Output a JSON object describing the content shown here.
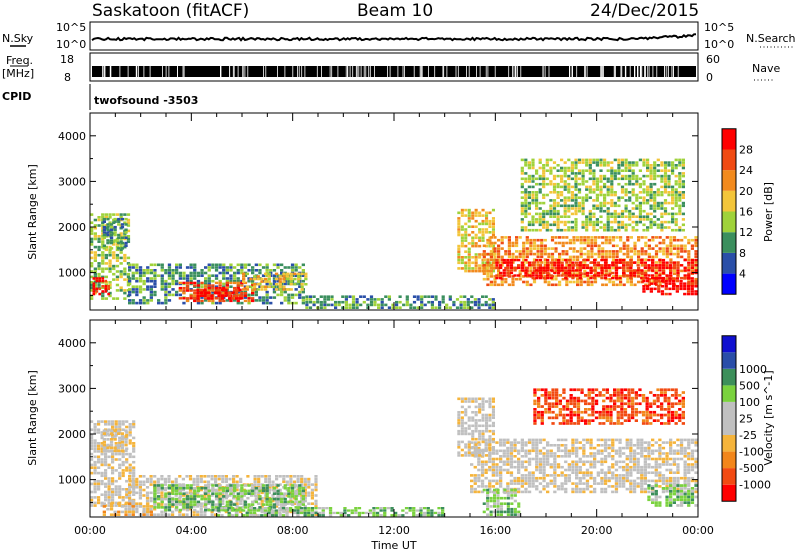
{
  "header": {
    "station": "Saskatoon (fitACF)",
    "beam": "Beam 10",
    "date": "24/Dec/2015"
  },
  "left_labels": {
    "nsky": "N.Sky",
    "freq": "Freq.",
    "mhz": "[MHz]",
    "cpid": "CPID"
  },
  "right_labels": {
    "nsearch": "N.Search",
    "nave": "Nave"
  },
  "nsky_ticks": {
    "top": "10^5",
    "bottom": "10^0"
  },
  "freq_ticks": {
    "top": "18",
    "bottom": "8"
  },
  "nave_ticks": {
    "top": "60",
    "bottom": "0"
  },
  "cpid_text": "twofsound -3503",
  "colors": {
    "power": [
      "#0000ff",
      "#2a4fa8",
      "#3b8f5e",
      "#9fd23a",
      "#f3c53a",
      "#f28a1d",
      "#f04a12",
      "#ff0000"
    ],
    "velocity": [
      "#ff0000",
      "#f24a12",
      "#f2861b",
      "#f5b43b",
      "#c0c0c0",
      "#c0c0c0",
      "#7ad23e",
      "#3c8f5a",
      "#2a4ea8",
      "#1010d0"
    ]
  },
  "chart_data": [
    {
      "type": "heatmap",
      "panel": "power",
      "ylabel": "Slant Range [km]",
      "xlim": [
        0,
        24
      ],
      "ylim": [
        180,
        4500
      ],
      "yticks": [
        1000,
        2000,
        3000,
        4000
      ],
      "colorbar": {
        "label": "Power [dB]",
        "ticks": [
          "4",
          "8",
          "12",
          "16",
          "20",
          "24",
          "28"
        ],
        "range": [
          0,
          32
        ]
      },
      "regions": [
        {
          "t0": 0.0,
          "t1": 1.6,
          "r0": 400,
          "r1": 2300,
          "level": 3
        },
        {
          "t0": 0.1,
          "t1": 0.8,
          "r0": 500,
          "r1": 900,
          "level": 7
        },
        {
          "t0": 0.5,
          "t1": 1.5,
          "r0": 1500,
          "r1": 2200,
          "level": 2
        },
        {
          "t0": 1.5,
          "t1": 8.5,
          "r0": 300,
          "r1": 1200,
          "level": 2
        },
        {
          "t0": 3.5,
          "t1": 6.5,
          "r0": 350,
          "r1": 800,
          "level": 6
        },
        {
          "t0": 4.2,
          "t1": 6.0,
          "r0": 400,
          "r1": 650,
          "level": 7
        },
        {
          "t0": 6.0,
          "t1": 8.6,
          "r0": 600,
          "r1": 1000,
          "level": 4
        },
        {
          "t0": 8.5,
          "t1": 16.0,
          "r0": 200,
          "r1": 500,
          "level": 2
        },
        {
          "t0": 14.5,
          "t1": 16.0,
          "r0": 1000,
          "r1": 2400,
          "level": 4
        },
        {
          "t0": 15.5,
          "t1": 24.0,
          "r0": 700,
          "r1": 1800,
          "level": 5
        },
        {
          "t0": 16.0,
          "t1": 24.0,
          "r0": 850,
          "r1": 1300,
          "level": 7
        },
        {
          "t0": 17.0,
          "t1": 23.5,
          "r0": 1900,
          "r1": 3500,
          "level": 3
        },
        {
          "t0": 21.8,
          "t1": 24.0,
          "r0": 500,
          "r1": 900,
          "level": 7
        }
      ]
    },
    {
      "type": "heatmap",
      "panel": "velocity",
      "ylabel": "Slant Range [km]",
      "xlabel": "Time UT",
      "xlim": [
        0,
        24
      ],
      "ylim": [
        180,
        4500
      ],
      "yticks": [
        1000,
        2000,
        3000,
        4000
      ],
      "xticks": [
        "00:00",
        "04:00",
        "08:00",
        "12:00",
        "16:00",
        "20:00",
        "00:00"
      ],
      "colorbar": {
        "label": "Velocity [m s^-1]",
        "ticks": [
          "-1000",
          "-500",
          "-100",
          "-25",
          "25",
          "100",
          "500",
          "1000"
        ]
      },
      "regions": [
        {
          "t0": 0.0,
          "t1": 1.8,
          "r0": 400,
          "r1": 2300,
          "level": 4
        },
        {
          "t0": 0.5,
          "t1": 1.5,
          "r0": 1600,
          "r1": 2100,
          "level": 4
        },
        {
          "t0": 1.5,
          "t1": 9.0,
          "r0": 200,
          "r1": 1100,
          "level": 4
        },
        {
          "t0": 2.5,
          "t1": 8.5,
          "r0": 300,
          "r1": 900,
          "level": 6
        },
        {
          "t0": 5.0,
          "t1": 14.0,
          "r0": 190,
          "r1": 400,
          "level": 6
        },
        {
          "t0": 0.5,
          "t1": 2.5,
          "r0": 200,
          "r1": 500,
          "level": 3
        },
        {
          "t0": 15.0,
          "t1": 24.0,
          "r0": 700,
          "r1": 1900,
          "level": 4
        },
        {
          "t0": 14.5,
          "t1": 16.0,
          "r0": 1500,
          "r1": 2800,
          "level": 4
        },
        {
          "t0": 17.5,
          "t1": 23.5,
          "r0": 2200,
          "r1": 3000,
          "level": 1
        },
        {
          "t0": 15.5,
          "t1": 17.0,
          "r0": 200,
          "r1": 800,
          "level": 6
        },
        {
          "t0": 22.0,
          "t1": 24.0,
          "r0": 400,
          "r1": 900,
          "level": 6
        }
      ]
    }
  ]
}
